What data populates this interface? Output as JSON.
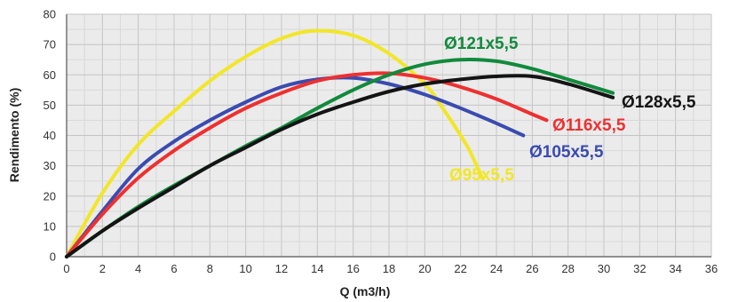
{
  "chart_data": {
    "type": "line",
    "title": "",
    "xlabel": "Q (m3/h)",
    "ylabel": "Rendimento (%)",
    "xlim": [
      0,
      36
    ],
    "ylim": [
      0,
      80
    ],
    "xticks": [
      0,
      2,
      4,
      6,
      8,
      10,
      12,
      14,
      16,
      18,
      20,
      22,
      24,
      26,
      28,
      30,
      32,
      34,
      36
    ],
    "yticks": [
      0,
      10,
      20,
      30,
      40,
      50,
      60,
      70,
      80
    ],
    "grid": true,
    "series": [
      {
        "name": "Ø95x5,5",
        "color": "#f2e628",
        "x": [
          0,
          2,
          4,
          6,
          8,
          10,
          12,
          13.8,
          16,
          18,
          20,
          21,
          22,
          22.5,
          23.2
        ],
        "y": [
          0,
          21,
          37,
          48,
          58,
          66,
          72,
          74.5,
          73,
          67,
          57,
          49,
          40,
          35,
          26
        ]
      },
      {
        "name": "Ø105x5,5",
        "color": "#3a4bb0",
        "x": [
          0,
          2,
          4,
          6,
          8,
          10,
          12,
          14,
          16,
          18,
          20,
          22,
          24,
          25.5
        ],
        "y": [
          0,
          15,
          29,
          38,
          45,
          51,
          56,
          58.5,
          59,
          57,
          53.5,
          49,
          44,
          40
        ]
      },
      {
        "name": "Ø116x5,5",
        "color": "#ee3030",
        "x": [
          0,
          2,
          4,
          6,
          8,
          10,
          12,
          14,
          16,
          18,
          20,
          22,
          24,
          26,
          26.8
        ],
        "y": [
          0,
          14,
          26,
          35,
          42.5,
          49,
          54,
          58,
          60,
          60.5,
          59,
          56,
          52,
          47,
          45
        ]
      },
      {
        "name": "Ø121x5,5",
        "color": "#118a3c",
        "x": [
          0,
          2,
          4,
          6,
          8,
          10,
          12,
          14,
          16,
          18,
          20,
          22,
          24,
          26,
          28,
          30.5
        ],
        "y": [
          0,
          8.5,
          16.5,
          23.5,
          30,
          36.5,
          42.5,
          49,
          55,
          60,
          63.5,
          65,
          64.5,
          62,
          58.5,
          54
        ]
      },
      {
        "name": "Ø128x5,5",
        "color": "#141414",
        "x": [
          0,
          2,
          4,
          6,
          8,
          10,
          12,
          14,
          16,
          18,
          20,
          22,
          24,
          26,
          28,
          30.5
        ],
        "y": [
          0,
          8.5,
          16,
          23,
          30,
          36,
          42,
          47,
          51,
          54.5,
          57,
          58.5,
          59.5,
          59.5,
          57,
          52.5
        ]
      }
    ]
  }
}
